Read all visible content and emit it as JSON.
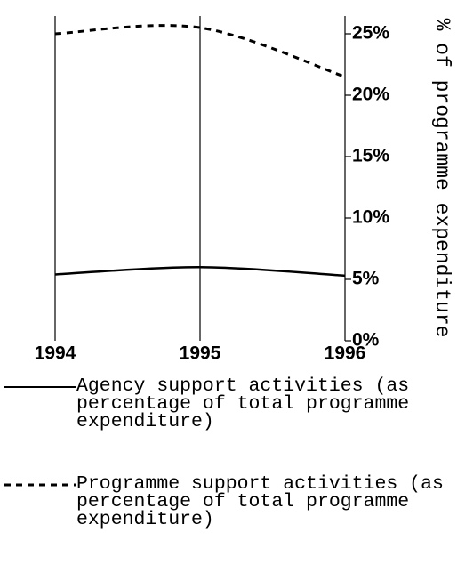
{
  "chart_data": {
    "type": "line",
    "y_label": "% of programme expenditure",
    "x": [
      1994,
      1995,
      1996
    ],
    "series": [
      {
        "name": "Agency support activities (as percentage of total programme expenditure)",
        "color": "#000000",
        "dash": "solid",
        "values": [
          5.4,
          6.0,
          5.3
        ]
      },
      {
        "name": "Programme support activities (as percentage of total programme expenditure)",
        "color": "#000000",
        "dash": "dashed",
        "values": [
          25.0,
          25.5,
          21.5
        ]
      }
    ],
    "xlim": [
      1994,
      1996
    ],
    "xticks": [
      1994,
      1995,
      1996
    ],
    "ylim": [
      0,
      25
    ],
    "yticks": [
      {
        "value": 0,
        "label": "0%"
      },
      {
        "value": 5,
        "label": "5%"
      },
      {
        "value": 10,
        "label": "10%"
      },
      {
        "value": 15,
        "label": "15%"
      },
      {
        "value": 20,
        "label": "20%"
      },
      {
        "value": 25,
        "label": "25%"
      }
    ],
    "y_axis_side": "right",
    "grid": true,
    "legend": "bottom"
  }
}
